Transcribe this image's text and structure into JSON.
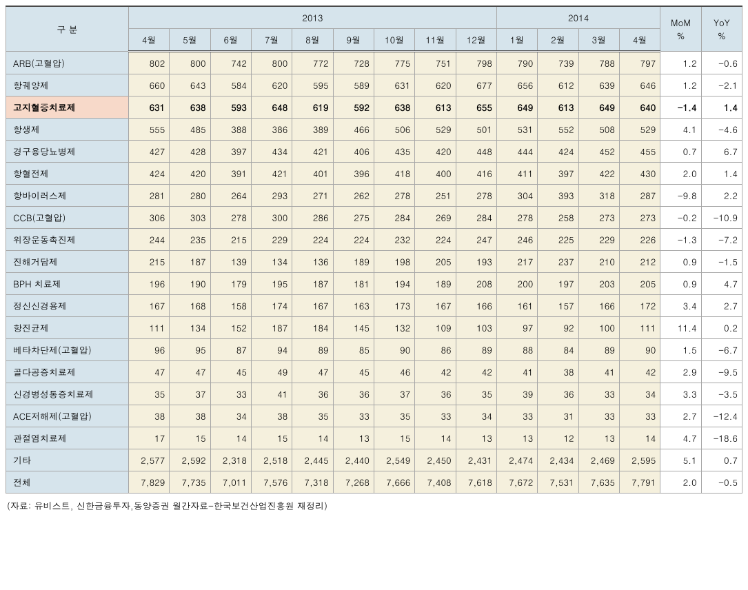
{
  "header": {
    "category_label": "구 분",
    "year_2013": "2013",
    "year_2014": "2014",
    "mom": "MoM\n%",
    "yoy": "YoY\n%",
    "months_2013": [
      "4월",
      "5월",
      "6월",
      "7월",
      "8월",
      "9월",
      "10월",
      "11월",
      "12월"
    ],
    "months_2014": [
      "1월",
      "2월",
      "3월",
      "4월"
    ]
  },
  "rows": [
    {
      "label": "ARB(고혈압)",
      "highlight": false,
      "v": [
        "802",
        "800",
        "742",
        "800",
        "772",
        "728",
        "775",
        "751",
        "798",
        "790",
        "739",
        "788",
        "797"
      ],
      "mom": "1.2",
      "yoy": "-0.6"
    },
    {
      "label": "항궤양제",
      "highlight": false,
      "v": [
        "660",
        "643",
        "584",
        "620",
        "595",
        "589",
        "631",
        "620",
        "677",
        "656",
        "612",
        "639",
        "646"
      ],
      "mom": "1.2",
      "yoy": "-2.1"
    },
    {
      "label": "고지혈증치료제",
      "highlight": true,
      "v": [
        "631",
        "638",
        "593",
        "648",
        "619",
        "592",
        "638",
        "613",
        "655",
        "649",
        "613",
        "649",
        "640"
      ],
      "mom": "-1.4",
      "yoy": "1.4"
    },
    {
      "label": "항생제",
      "highlight": false,
      "v": [
        "555",
        "485",
        "388",
        "386",
        "389",
        "466",
        "506",
        "529",
        "501",
        "531",
        "552",
        "508",
        "529"
      ],
      "mom": "4.1",
      "yoy": "-4.6"
    },
    {
      "label": "경구용당뇨병제",
      "highlight": false,
      "v": [
        "427",
        "428",
        "397",
        "434",
        "421",
        "406",
        "435",
        "420",
        "448",
        "444",
        "424",
        "452",
        "455"
      ],
      "mom": "0.7",
      "yoy": "6.7"
    },
    {
      "label": "항혈전제",
      "highlight": false,
      "v": [
        "424",
        "420",
        "391",
        "421",
        "401",
        "396",
        "418",
        "400",
        "416",
        "411",
        "397",
        "422",
        "430"
      ],
      "mom": "2.0",
      "yoy": "1.4"
    },
    {
      "label": "항바이러스제",
      "highlight": false,
      "v": [
        "281",
        "280",
        "264",
        "293",
        "271",
        "262",
        "278",
        "251",
        "278",
        "304",
        "393",
        "318",
        "287"
      ],
      "mom": "-9.8",
      "yoy": "2.2"
    },
    {
      "label": "CCB(고혈압)",
      "highlight": false,
      "v": [
        "306",
        "303",
        "278",
        "300",
        "286",
        "275",
        "284",
        "269",
        "284",
        "278",
        "258",
        "273",
        "273"
      ],
      "mom": "-0.2",
      "yoy": "-10.9"
    },
    {
      "label": "위장운동촉진제",
      "highlight": false,
      "v": [
        "244",
        "235",
        "215",
        "229",
        "224",
        "224",
        "232",
        "224",
        "247",
        "246",
        "225",
        "229",
        "226"
      ],
      "mom": "-1.3",
      "yoy": "-7.2"
    },
    {
      "label": "진해거담제",
      "highlight": false,
      "v": [
        "215",
        "187",
        "139",
        "134",
        "136",
        "189",
        "198",
        "205",
        "193",
        "217",
        "237",
        "210",
        "212"
      ],
      "mom": "0.9",
      "yoy": "-1.5"
    },
    {
      "label": "BPH 치료제",
      "highlight": false,
      "v": [
        "196",
        "190",
        "179",
        "195",
        "187",
        "181",
        "194",
        "189",
        "208",
        "200",
        "197",
        "203",
        "205"
      ],
      "mom": "0.9",
      "yoy": "4.7"
    },
    {
      "label": "정신신경용제",
      "highlight": false,
      "v": [
        "167",
        "168",
        "158",
        "174",
        "167",
        "163",
        "173",
        "167",
        "166",
        "161",
        "157",
        "166",
        "172"
      ],
      "mom": "3.4",
      "yoy": "2.7"
    },
    {
      "label": "항진균제",
      "highlight": false,
      "v": [
        "111",
        "134",
        "152",
        "187",
        "184",
        "145",
        "132",
        "109",
        "103",
        "97",
        "92",
        "100",
        "111"
      ],
      "mom": "11.4",
      "yoy": "0.2"
    },
    {
      "label": "베타차단제(고혈압)",
      "highlight": false,
      "v": [
        "96",
        "95",
        "87",
        "94",
        "89",
        "85",
        "90",
        "86",
        "89",
        "88",
        "84",
        "89",
        "90"
      ],
      "mom": "1.5",
      "yoy": "-6.7"
    },
    {
      "label": "골다공증치료제",
      "highlight": false,
      "v": [
        "47",
        "47",
        "45",
        "49",
        "47",
        "45",
        "46",
        "42",
        "42",
        "41",
        "38",
        "41",
        "42"
      ],
      "mom": "2.9",
      "yoy": "-9.5"
    },
    {
      "label": "신경병성통증치료제",
      "highlight": false,
      "v": [
        "35",
        "37",
        "33",
        "41",
        "36",
        "36",
        "37",
        "36",
        "35",
        "39",
        "36",
        "33",
        "34"
      ],
      "mom": "3.3",
      "yoy": "-3.5"
    },
    {
      "label": "ACE저해제(고혈압)",
      "highlight": false,
      "v": [
        "38",
        "38",
        "34",
        "38",
        "35",
        "33",
        "35",
        "33",
        "34",
        "33",
        "31",
        "33",
        "33"
      ],
      "mom": "2.7",
      "yoy": "-12.4"
    },
    {
      "label": "관절염치료제",
      "highlight": false,
      "v": [
        "17",
        "15",
        "14",
        "15",
        "14",
        "13",
        "15",
        "14",
        "13",
        "13",
        "12",
        "13",
        "14"
      ],
      "mom": "4.7",
      "yoy": "-18.6"
    },
    {
      "label": "기타",
      "highlight": false,
      "v": [
        "2,577",
        "2,592",
        "2,318",
        "2,518",
        "2,445",
        "2,440",
        "2,549",
        "2,450",
        "2,431",
        "2,474",
        "2,434",
        "2,469",
        "2,595"
      ],
      "mom": "5.1",
      "yoy": "0.7"
    },
    {
      "label": "전체",
      "highlight": false,
      "v": [
        "7,829",
        "7,735",
        "7,011",
        "7,576",
        "7,318",
        "7,268",
        "7,666",
        "7,408",
        "7,618",
        "7,672",
        "7,531",
        "7,635",
        "7,791"
      ],
      "mom": "2.0",
      "yoy": "-0.5"
    }
  ],
  "source": "(자료: 유비스트, 신한금융투자,동양증권 월간자료-한국보건산업진흥원 재정리)",
  "colors": {
    "header_bg": "#d6e4ec",
    "label_bg": "#d6e4ec",
    "value_bg": "#f5f0dd",
    "highlight_label_bg": "#f7d9c9",
    "border": "#a7a7a7",
    "top_border": "#4a4a4a"
  }
}
